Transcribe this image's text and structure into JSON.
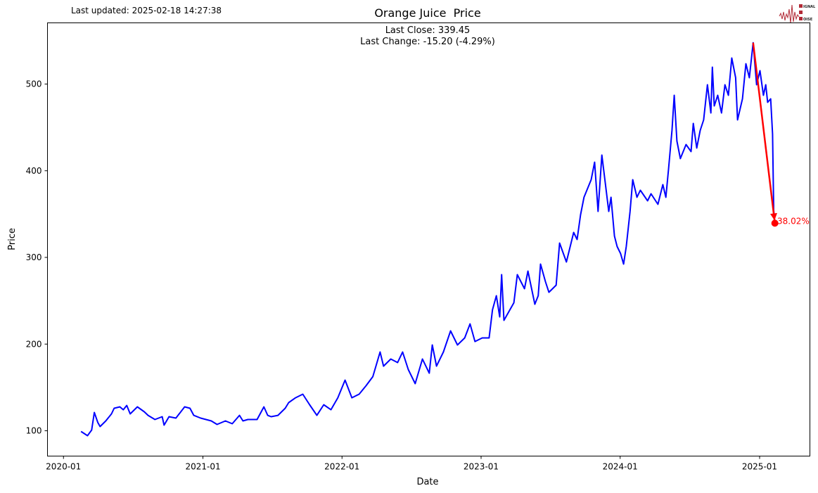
{
  "header": {
    "last_updated": "Last updated: 2025-02-18 14:27:38",
    "logo_text": [
      "SIGNAL",
      "2",
      "NOISE"
    ]
  },
  "colors": {
    "line": "#0000ff",
    "annotation": "#ff0000",
    "logo": "#b22a36"
  },
  "chart_data": {
    "type": "line",
    "title": "Orange Juice  Price",
    "subtitle_lines": [
      "Last Close: 339.45",
      "Last Change: -15.20 (-4.29%)"
    ],
    "xlabel": "Date",
    "ylabel": "Price",
    "xlim": [
      "2019-11-20",
      "2025-05-13"
    ],
    "ylim": [
      70.8,
      570.6
    ],
    "xticks": [
      "2020-01",
      "2021-01",
      "2022-01",
      "2023-01",
      "2024-01",
      "2025-01"
    ],
    "yticks": [
      100,
      200,
      300,
      400,
      500
    ],
    "grid": false,
    "annotation": {
      "from": {
        "x": "2024-12-15",
        "y": 547.65
      },
      "to": {
        "x": "2025-02-10",
        "y": 339.45
      },
      "label": "-38.02%"
    },
    "series": [
      {
        "points": [
          [
            "2020-02-16",
            99.2
          ],
          [
            "2020-03-04",
            94.3
          ],
          [
            "2020-03-15",
            100.8
          ],
          [
            "2020-03-22",
            121.1
          ],
          [
            "2020-03-31",
            109.7
          ],
          [
            "2020-04-06",
            104.9
          ],
          [
            "2020-04-21",
            111.4
          ],
          [
            "2020-05-06",
            119.5
          ],
          [
            "2020-05-13",
            126
          ],
          [
            "2020-05-28",
            127.6
          ],
          [
            "2020-06-06",
            124.3
          ],
          [
            "2020-06-15",
            129.2
          ],
          [
            "2020-06-24",
            119.5
          ],
          [
            "2020-07-13",
            127.6
          ],
          [
            "2020-07-31",
            121.9
          ],
          [
            "2020-08-10",
            117.8
          ],
          [
            "2020-08-28",
            113
          ],
          [
            "2020-09-16",
            116.2
          ],
          [
            "2020-09-21",
            106.5
          ],
          [
            "2020-10-04",
            116.2
          ],
          [
            "2020-10-22",
            114.6
          ],
          [
            "2020-11-14",
            127.6
          ],
          [
            "2020-11-28",
            126
          ],
          [
            "2020-12-08",
            117.8
          ],
          [
            "2020-12-26",
            114.6
          ],
          [
            "2021-01-23",
            111.4
          ],
          [
            "2021-02-07",
            107.3
          ],
          [
            "2021-03-01",
            111.4
          ],
          [
            "2021-03-19",
            108.1
          ],
          [
            "2021-04-07",
            117.8
          ],
          [
            "2021-04-16",
            111.4
          ],
          [
            "2021-04-29",
            113
          ],
          [
            "2021-05-23",
            113
          ],
          [
            "2021-06-10",
            127.6
          ],
          [
            "2021-06-20",
            117.8
          ],
          [
            "2021-06-29",
            116.2
          ],
          [
            "2021-07-17",
            117.8
          ],
          [
            "2021-08-05",
            126
          ],
          [
            "2021-08-14",
            132.5
          ],
          [
            "2021-09-01",
            138.1
          ],
          [
            "2021-09-20",
            142.2
          ],
          [
            "2021-10-08",
            130
          ],
          [
            "2021-10-27",
            117.8
          ],
          [
            "2021-11-14",
            130
          ],
          [
            "2021-12-03",
            124.3
          ],
          [
            "2021-12-21",
            138.1
          ],
          [
            "2022-01-09",
            158.4
          ],
          [
            "2022-01-27",
            138.1
          ],
          [
            "2022-02-15",
            142.2
          ],
          [
            "2022-03-05",
            151.9
          ],
          [
            "2022-03-23",
            162.5
          ],
          [
            "2022-04-11",
            190.9
          ],
          [
            "2022-04-20",
            174.6
          ],
          [
            "2022-05-09",
            182.8
          ],
          [
            "2022-05-27",
            178.7
          ],
          [
            "2022-06-09",
            190.9
          ],
          [
            "2022-06-24",
            170.6
          ],
          [
            "2022-07-12",
            154.4
          ],
          [
            "2022-07-31",
            182.8
          ],
          [
            "2022-08-18",
            166.5
          ],
          [
            "2022-08-26",
            199
          ],
          [
            "2022-09-06",
            174.6
          ],
          [
            "2022-09-24",
            190.9
          ],
          [
            "2022-10-13",
            215.2
          ],
          [
            "2022-10-31",
            199
          ],
          [
            "2022-11-19",
            207.1
          ],
          [
            "2022-12-03",
            223.3
          ],
          [
            "2022-12-16",
            203
          ],
          [
            "2023-01-04",
            207.1
          ],
          [
            "2023-01-22",
            207.1
          ],
          [
            "2023-01-31",
            239.6
          ],
          [
            "2023-02-10",
            255.8
          ],
          [
            "2023-02-19",
            231.4
          ],
          [
            "2023-02-24",
            280.1
          ],
          [
            "2023-03-02",
            227.4
          ],
          [
            "2023-03-28",
            247.7
          ],
          [
            "2023-04-06",
            280.1
          ],
          [
            "2023-04-25",
            263.9
          ],
          [
            "2023-05-04",
            284.2
          ],
          [
            "2023-05-22",
            246
          ],
          [
            "2023-05-31",
            255.8
          ],
          [
            "2023-06-06",
            292.3
          ],
          [
            "2023-06-19",
            272
          ],
          [
            "2023-06-28",
            259.8
          ],
          [
            "2023-07-17",
            268
          ],
          [
            "2023-07-26",
            316.6
          ],
          [
            "2023-08-13",
            294.7
          ],
          [
            "2023-09-01",
            328.8
          ],
          [
            "2023-09-10",
            320.7
          ],
          [
            "2023-09-19",
            349.1
          ],
          [
            "2023-09-28",
            369.4
          ],
          [
            "2023-10-17",
            389.7
          ],
          [
            "2023-10-26",
            409.9
          ],
          [
            "2023-11-04",
            353.1
          ],
          [
            "2023-11-14",
            418.1
          ],
          [
            "2023-11-23",
            385.6
          ],
          [
            "2023-12-02",
            353.1
          ],
          [
            "2023-12-08",
            369.4
          ],
          [
            "2023-12-17",
            324.7
          ],
          [
            "2023-12-24",
            312.6
          ],
          [
            "2024-01-02",
            304.5
          ],
          [
            "2024-01-10",
            292.3
          ],
          [
            "2024-01-17",
            312.6
          ],
          [
            "2024-01-27",
            353.1
          ],
          [
            "2024-02-03",
            389.7
          ],
          [
            "2024-02-14",
            369.4
          ],
          [
            "2024-02-23",
            377.5
          ],
          [
            "2024-03-13",
            365.3
          ],
          [
            "2024-03-22",
            373.4
          ],
          [
            "2024-04-09",
            361.3
          ],
          [
            "2024-04-22",
            384
          ],
          [
            "2024-04-30",
            369.4
          ],
          [
            "2024-05-07",
            401.8
          ],
          [
            "2024-05-16",
            446.5
          ],
          [
            "2024-05-22",
            487
          ],
          [
            "2024-05-29",
            434.3
          ],
          [
            "2024-06-07",
            414
          ],
          [
            "2024-06-22",
            430.2
          ],
          [
            "2024-07-05",
            422.1
          ],
          [
            "2024-07-11",
            454.6
          ],
          [
            "2024-07-20",
            426.2
          ],
          [
            "2024-07-29",
            446.5
          ],
          [
            "2024-08-07",
            458.6
          ],
          [
            "2024-08-17",
            499.2
          ],
          [
            "2024-08-26",
            466.7
          ],
          [
            "2024-08-30",
            519.5
          ],
          [
            "2024-09-04",
            474.8
          ],
          [
            "2024-09-13",
            487
          ],
          [
            "2024-09-23",
            466.7
          ],
          [
            "2024-10-02",
            499.2
          ],
          [
            "2024-10-11",
            487
          ],
          [
            "2024-10-20",
            530
          ],
          [
            "2024-10-30",
            507.3
          ],
          [
            "2024-11-04",
            458.6
          ],
          [
            "2024-11-17",
            483
          ],
          [
            "2024-11-26",
            523.5
          ],
          [
            "2024-12-05",
            507.3
          ],
          [
            "2024-12-15",
            547.65
          ],
          [
            "2024-12-18",
            531.6
          ],
          [
            "2024-12-24",
            499.2
          ],
          [
            "2025-01-02",
            515.4
          ],
          [
            "2025-01-11",
            487
          ],
          [
            "2025-01-17",
            499.2
          ],
          [
            "2025-01-22",
            478.9
          ],
          [
            "2025-01-30",
            483
          ],
          [
            "2025-02-04",
            442.4
          ],
          [
            "2025-02-07",
            354.65
          ],
          [
            "2025-02-10",
            339.45
          ]
        ]
      }
    ]
  }
}
